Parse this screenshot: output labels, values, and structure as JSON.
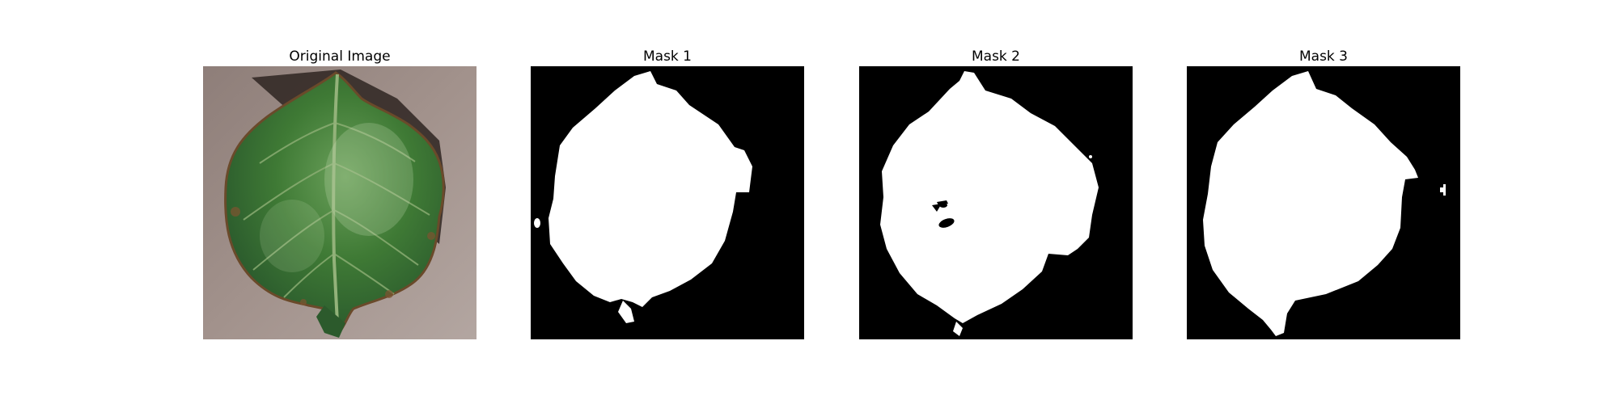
{
  "figure": {
    "panels": [
      {
        "title": "Original Image",
        "content": "leaf photograph"
      },
      {
        "title": "Mask 1",
        "content": "binary segmentation mask"
      },
      {
        "title": "Mask 2",
        "content": "binary segmentation mask"
      },
      {
        "title": "Mask 3",
        "content": "binary segmentation mask"
      }
    ],
    "colors": {
      "background": "#ffffff",
      "mask_foreground": "#ffffff",
      "mask_background": "#000000",
      "leaf_green": "#3f7a35",
      "ground": "#9c8c86"
    }
  }
}
